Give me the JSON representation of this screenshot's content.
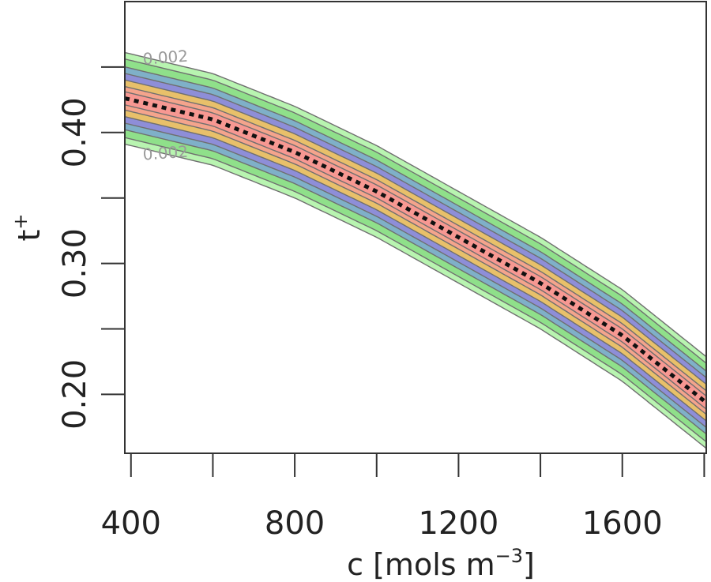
{
  "chart_data": {
    "type": "contour",
    "xlabel": "c [mols m",
    "xlabel_sup": "−3",
    "xlabel_suffix": "]",
    "ylabel": "t",
    "ylabel_sup": "+",
    "xlim": [
      385,
      1805
    ],
    "ylim": [
      0.155,
      0.5
    ],
    "x_ticks": [
      400,
      600,
      800,
      1000,
      1200,
      1400,
      1600,
      1800
    ],
    "x_tick_labels": [
      {
        "value": 400,
        "label": "400"
      },
      {
        "value": 800,
        "label": "800"
      },
      {
        "value": 1200,
        "label": "1200"
      },
      {
        "value": 1600,
        "label": "1600"
      }
    ],
    "y_ticks": [
      0.2,
      0.25,
      0.3,
      0.35,
      0.4,
      0.45
    ],
    "y_tick_labels": [
      {
        "value": 0.2,
        "label": "0.20"
      },
      {
        "value": 0.3,
        "label": "0.30"
      },
      {
        "value": 0.4,
        "label": "0.40"
      }
    ],
    "mean_curve": {
      "name": "posterior mean",
      "style": "dotted",
      "x": [
        400,
        600,
        800,
        1000,
        1200,
        1400,
        1600,
        1800
      ],
      "y": [
        0.425,
        0.41,
        0.385,
        0.355,
        0.32,
        0.285,
        0.245,
        0.195
      ]
    },
    "bands": [
      {
        "half_width": 0.035,
        "color": "#b8f4b0"
      },
      {
        "half_width": 0.03,
        "color": "#8fe08a"
      },
      {
        "half_width": 0.024,
        "color": "#7fb0c8"
      },
      {
        "half_width": 0.019,
        "color": "#8e8ed8"
      },
      {
        "half_width": 0.014,
        "color": "#e8c06a"
      },
      {
        "half_width": 0.009,
        "color": "#f4a48c"
      },
      {
        "half_width": 0.005,
        "color": "#f79892"
      }
    ],
    "contour_labels": [
      {
        "x": 430,
        "y": 0.452,
        "text": "0.002"
      },
      {
        "x": 430,
        "y": 0.379,
        "text": "0.002"
      }
    ]
  }
}
